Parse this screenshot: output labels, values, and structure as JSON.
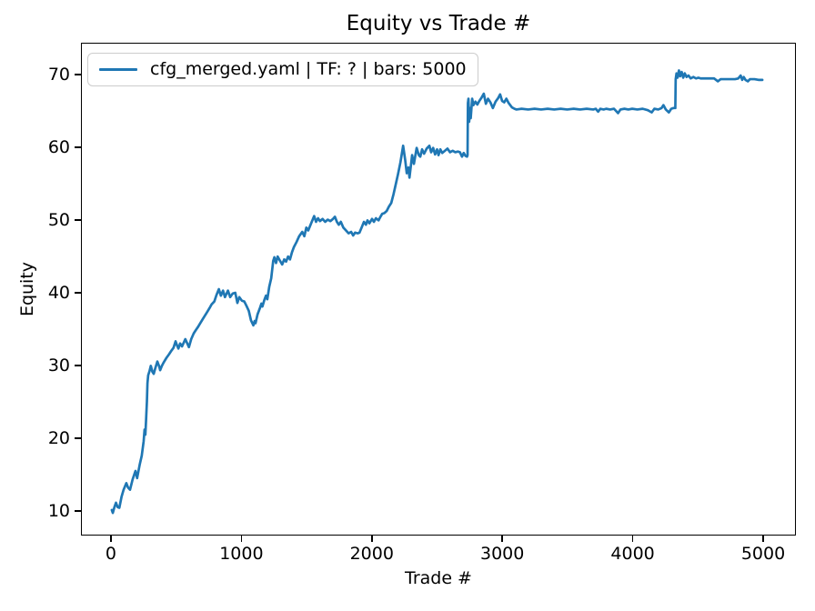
{
  "colors": {
    "line": "#1f77b4",
    "text": "#000000",
    "spine": "#000000",
    "legend_border": "#cccccc",
    "background": "#ffffff"
  },
  "chart_data": {
    "type": "line",
    "title": "Equity vs Trade #",
    "xlabel": "Trade #",
    "ylabel": "Equity",
    "xlim": [
      -230,
      5251
    ],
    "ylim": [
      6.6,
      74.4
    ],
    "xticks": [
      0,
      1000,
      2000,
      3000,
      4000,
      5000
    ],
    "yticks": [
      10,
      20,
      30,
      40,
      50,
      60,
      70
    ],
    "grid": false,
    "legend": {
      "position": "upper-left",
      "entries": [
        {
          "label": "cfg_merged.yaml | TF: ? | bars: 5000",
          "color": "#1f77b4"
        }
      ]
    },
    "series": [
      {
        "name": "cfg_merged.yaml | TF: ? | bars: 5000",
        "color": "#1f77b4",
        "points": [
          [
            0,
            10.0
          ],
          [
            8,
            9.6
          ],
          [
            20,
            10.4
          ],
          [
            32,
            11.0
          ],
          [
            45,
            10.4
          ],
          [
            58,
            10.3
          ],
          [
            75,
            11.8
          ],
          [
            91,
            12.8
          ],
          [
            112,
            13.7
          ],
          [
            125,
            13.1
          ],
          [
            140,
            12.8
          ],
          [
            160,
            14.2
          ],
          [
            182,
            15.4
          ],
          [
            195,
            14.4
          ],
          [
            215,
            16.3
          ],
          [
            230,
            17.5
          ],
          [
            245,
            19.5
          ],
          [
            252,
            21.1
          ],
          [
            258,
            20.4
          ],
          [
            264,
            22.5
          ],
          [
            270,
            25.0
          ],
          [
            274,
            27.5
          ],
          [
            280,
            28.6
          ],
          [
            290,
            29.2
          ],
          [
            300,
            29.9
          ],
          [
            312,
            29.1
          ],
          [
            322,
            28.8
          ],
          [
            335,
            29.6
          ],
          [
            350,
            30.5
          ],
          [
            365,
            29.8
          ],
          [
            372,
            29.3
          ],
          [
            385,
            29.9
          ],
          [
            400,
            30.4
          ],
          [
            420,
            31.0
          ],
          [
            440,
            31.5
          ],
          [
            458,
            32.0
          ],
          [
            474,
            32.4
          ],
          [
            490,
            33.3
          ],
          [
            500,
            32.8
          ],
          [
            512,
            32.3
          ],
          [
            525,
            33.0
          ],
          [
            540,
            32.6
          ],
          [
            555,
            33.2
          ],
          [
            565,
            33.6
          ],
          [
            580,
            33.0
          ],
          [
            593,
            32.5
          ],
          [
            610,
            33.6
          ],
          [
            630,
            34.4
          ],
          [
            648,
            34.9
          ],
          [
            663,
            35.3
          ],
          [
            680,
            35.8
          ],
          [
            700,
            36.4
          ],
          [
            718,
            36.9
          ],
          [
            735,
            37.4
          ],
          [
            752,
            37.9
          ],
          [
            767,
            38.4
          ],
          [
            788,
            38.8
          ],
          [
            805,
            39.7
          ],
          [
            823,
            40.5
          ],
          [
            838,
            39.6
          ],
          [
            855,
            40.3
          ],
          [
            870,
            39.4
          ],
          [
            893,
            40.3
          ],
          [
            910,
            39.4
          ],
          [
            930,
            39.9
          ],
          [
            949,
            40.0
          ],
          [
            965,
            38.6
          ],
          [
            980,
            39.4
          ],
          [
            1000,
            38.9
          ],
          [
            1018,
            38.8
          ],
          [
            1035,
            38.2
          ],
          [
            1053,
            37.5
          ],
          [
            1070,
            36.2
          ],
          [
            1088,
            35.5
          ],
          [
            1098,
            36.1
          ],
          [
            1105,
            35.8
          ],
          [
            1120,
            37.0
          ],
          [
            1137,
            37.8
          ],
          [
            1150,
            38.5
          ],
          [
            1158,
            38.1
          ],
          [
            1172,
            39.0
          ],
          [
            1185,
            39.6
          ],
          [
            1195,
            39.1
          ],
          [
            1210,
            40.8
          ],
          [
            1225,
            42.0
          ],
          [
            1241,
            44.4
          ],
          [
            1250,
            44.9
          ],
          [
            1262,
            44.1
          ],
          [
            1275,
            45.0
          ],
          [
            1290,
            44.5
          ],
          [
            1310,
            43.9
          ],
          [
            1325,
            44.6
          ],
          [
            1340,
            44.3
          ],
          [
            1355,
            45.0
          ],
          [
            1370,
            44.6
          ],
          [
            1385,
            45.6
          ],
          [
            1400,
            46.3
          ],
          [
            1420,
            47.0
          ],
          [
            1440,
            47.8
          ],
          [
            1464,
            48.4
          ],
          [
            1480,
            47.8
          ],
          [
            1495,
            49.0
          ],
          [
            1510,
            48.6
          ],
          [
            1530,
            49.5
          ],
          [
            1555,
            50.6
          ],
          [
            1570,
            49.8
          ],
          [
            1585,
            50.3
          ],
          [
            1600,
            49.9
          ],
          [
            1620,
            50.2
          ],
          [
            1640,
            49.8
          ],
          [
            1660,
            50.1
          ],
          [
            1680,
            49.9
          ],
          [
            1700,
            50.2
          ],
          [
            1715,
            50.5
          ],
          [
            1730,
            49.8
          ],
          [
            1745,
            49.4
          ],
          [
            1760,
            49.8
          ],
          [
            1780,
            49.0
          ],
          [
            1800,
            48.6
          ],
          [
            1820,
            48.2
          ],
          [
            1840,
            48.4
          ],
          [
            1855,
            47.9
          ],
          [
            1870,
            48.3
          ],
          [
            1890,
            48.2
          ],
          [
            1904,
            48.3
          ],
          [
            1920,
            49.0
          ],
          [
            1938,
            49.8
          ],
          [
            1953,
            49.4
          ],
          [
            1965,
            50.0
          ],
          [
            1980,
            49.6
          ],
          [
            2000,
            50.2
          ],
          [
            2015,
            49.8
          ],
          [
            2030,
            50.3
          ],
          [
            2050,
            50.0
          ],
          [
            2065,
            50.5
          ],
          [
            2078,
            50.9
          ],
          [
            2095,
            51.0
          ],
          [
            2113,
            51.3
          ],
          [
            2130,
            51.9
          ],
          [
            2148,
            52.4
          ],
          [
            2165,
            53.6
          ],
          [
            2183,
            55.0
          ],
          [
            2200,
            56.4
          ],
          [
            2218,
            58.0
          ],
          [
            2239,
            60.3
          ],
          [
            2255,
            58.3
          ],
          [
            2267,
            56.5
          ],
          [
            2280,
            57.3
          ],
          [
            2288,
            55.9
          ],
          [
            2308,
            59.0
          ],
          [
            2322,
            57.8
          ],
          [
            2343,
            60.0
          ],
          [
            2360,
            59.0
          ],
          [
            2371,
            58.8
          ],
          [
            2385,
            59.8
          ],
          [
            2400,
            59.2
          ],
          [
            2420,
            59.9
          ],
          [
            2441,
            60.3
          ],
          [
            2455,
            59.4
          ],
          [
            2470,
            60.0
          ],
          [
            2485,
            59.1
          ],
          [
            2500,
            59.8
          ],
          [
            2511,
            59.0
          ],
          [
            2525,
            59.8
          ],
          [
            2540,
            59.3
          ],
          [
            2560,
            59.6
          ],
          [
            2580,
            59.9
          ],
          [
            2600,
            59.4
          ],
          [
            2620,
            59.6
          ],
          [
            2640,
            59.4
          ],
          [
            2660,
            59.5
          ],
          [
            2676,
            59.4
          ],
          [
            2692,
            58.8
          ],
          [
            2705,
            59.3
          ],
          [
            2718,
            58.9
          ],
          [
            2730,
            58.8
          ],
          [
            2734,
            59.0
          ],
          [
            2737,
            66.2
          ],
          [
            2741,
            66.8
          ],
          [
            2747,
            63.6
          ],
          [
            2753,
            65.5
          ],
          [
            2759,
            64.1
          ],
          [
            2770,
            66.8
          ],
          [
            2780,
            65.9
          ],
          [
            2795,
            66.4
          ],
          [
            2810,
            66.0
          ],
          [
            2825,
            66.5
          ],
          [
            2840,
            66.9
          ],
          [
            2859,
            67.5
          ],
          [
            2875,
            66.1
          ],
          [
            2892,
            66.8
          ],
          [
            2910,
            66.3
          ],
          [
            2929,
            65.5
          ],
          [
            2950,
            66.4
          ],
          [
            2970,
            66.9
          ],
          [
            2985,
            67.4
          ],
          [
            3000,
            66.5
          ],
          [
            3016,
            66.3
          ],
          [
            3033,
            66.8
          ],
          [
            3050,
            66.2
          ],
          [
            3075,
            65.6
          ],
          [
            3095,
            65.4
          ],
          [
            3110,
            65.3
          ],
          [
            3150,
            65.4
          ],
          [
            3200,
            65.3
          ],
          [
            3250,
            65.4
          ],
          [
            3300,
            65.3
          ],
          [
            3350,
            65.4
          ],
          [
            3400,
            65.3
          ],
          [
            3450,
            65.4
          ],
          [
            3500,
            65.3
          ],
          [
            3550,
            65.4
          ],
          [
            3600,
            65.3
          ],
          [
            3650,
            65.4
          ],
          [
            3700,
            65.3
          ],
          [
            3720,
            65.4
          ],
          [
            3738,
            65.0
          ],
          [
            3755,
            65.4
          ],
          [
            3780,
            65.3
          ],
          [
            3800,
            65.4
          ],
          [
            3830,
            65.3
          ],
          [
            3860,
            65.4
          ],
          [
            3891,
            64.8
          ],
          [
            3910,
            65.3
          ],
          [
            3940,
            65.4
          ],
          [
            3970,
            65.3
          ],
          [
            4000,
            65.4
          ],
          [
            4040,
            65.3
          ],
          [
            4080,
            65.4
          ],
          [
            4120,
            65.2
          ],
          [
            4150,
            64.9
          ],
          [
            4170,
            65.4
          ],
          [
            4200,
            65.3
          ],
          [
            4225,
            65.5
          ],
          [
            4240,
            65.9
          ],
          [
            4258,
            65.3
          ],
          [
            4282,
            64.9
          ],
          [
            4300,
            65.4
          ],
          [
            4318,
            65.5
          ],
          [
            4331,
            65.5
          ],
          [
            4334,
            69.5
          ],
          [
            4340,
            70.3
          ],
          [
            4348,
            69.7
          ],
          [
            4359,
            70.7
          ],
          [
            4368,
            69.9
          ],
          [
            4380,
            70.5
          ],
          [
            4392,
            69.7
          ],
          [
            4404,
            70.3
          ],
          [
            4418,
            69.8
          ],
          [
            4432,
            70.0
          ],
          [
            4450,
            69.6
          ],
          [
            4470,
            69.8
          ],
          [
            4490,
            69.6
          ],
          [
            4510,
            69.7
          ],
          [
            4526,
            69.6
          ],
          [
            4560,
            69.6
          ],
          [
            4600,
            69.6
          ],
          [
            4630,
            69.6
          ],
          [
            4658,
            69.2
          ],
          [
            4680,
            69.5
          ],
          [
            4710,
            69.5
          ],
          [
            4750,
            69.5
          ],
          [
            4790,
            69.5
          ],
          [
            4815,
            69.6
          ],
          [
            4833,
            70.0
          ],
          [
            4845,
            69.4
          ],
          [
            4857,
            69.8
          ],
          [
            4870,
            69.4
          ],
          [
            4889,
            69.2
          ],
          [
            4905,
            69.5
          ],
          [
            4940,
            69.5
          ],
          [
            4970,
            69.4
          ],
          [
            5000,
            69.4
          ]
        ]
      }
    ]
  }
}
